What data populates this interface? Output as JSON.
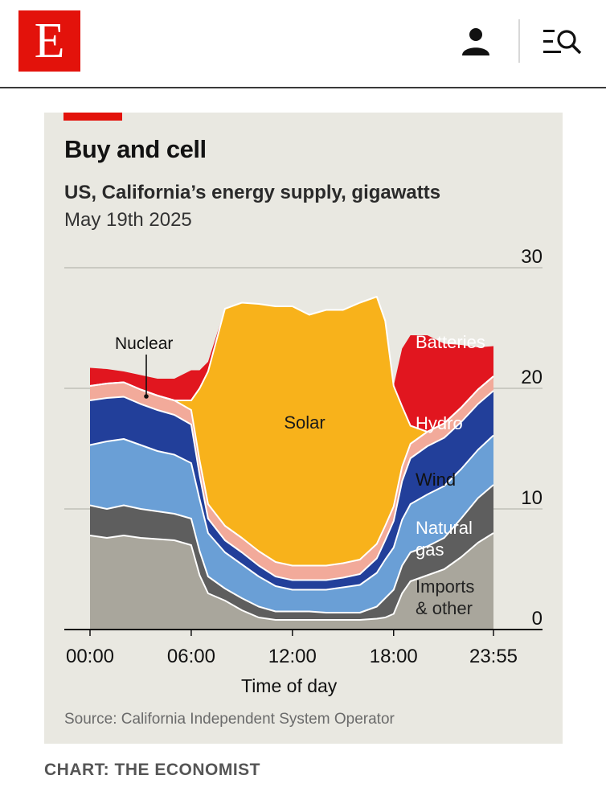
{
  "header": {
    "logo_letter": "E",
    "icons": [
      "user-icon",
      "search-menu-icon"
    ]
  },
  "colors": {
    "brand_red": "#e3120b",
    "card_bg": "#e9e8e1",
    "imports": "#a9a69c",
    "natural_gas": "#5e5e5e",
    "wind": "#6a9fd6",
    "hydro": "#223f9a",
    "nuclear": "#f2aa9a",
    "solar": "#f8b21b",
    "batteries": "#e1161f"
  },
  "chart_data": {
    "type": "area",
    "stacked": true,
    "title": "Buy and cell",
    "subtitle": "US, California’s energy supply, gigawatts",
    "date": "May 19th 2025",
    "xlabel": "Time of day",
    "ylabel": "",
    "x_hours": [
      0,
      1,
      2,
      3,
      4,
      5,
      6,
      6.5,
      7,
      8,
      9,
      10,
      11,
      12,
      13,
      14,
      15,
      16,
      17,
      17.5,
      18,
      18.5,
      19,
      20,
      21,
      22,
      23,
      23.92
    ],
    "x_ticks": [
      "00:00",
      "06:00",
      "12:00",
      "18:00",
      "23:55"
    ],
    "x_tick_hours": [
      0,
      6,
      12,
      18,
      23.92
    ],
    "ylim": [
      0,
      30
    ],
    "y_ticks": [
      "0",
      "10",
      "20",
      "30"
    ],
    "y_tick_values": [
      0,
      10,
      20,
      30
    ],
    "series": [
      {
        "name": "Imports & other",
        "label": "Imports\n& other",
        "values": [
          7.8,
          7.6,
          7.8,
          7.6,
          7.5,
          7.4,
          7.0,
          4.5,
          3.0,
          2.4,
          1.6,
          1.0,
          0.8,
          0.8,
          0.8,
          0.8,
          0.8,
          0.8,
          0.9,
          1.0,
          1.3,
          3.0,
          4.0,
          4.5,
          5.0,
          6.0,
          7.2,
          8.0
        ]
      },
      {
        "name": "Natural gas",
        "label": "Natural\ngas",
        "values": [
          2.5,
          2.4,
          2.5,
          2.4,
          2.3,
          2.2,
          2.2,
          2.0,
          1.4,
          1.0,
          1.0,
          0.9,
          0.7,
          0.7,
          0.7,
          0.6,
          0.6,
          0.6,
          1.0,
          1.6,
          2.0,
          2.3,
          2.4,
          2.4,
          2.6,
          3.2,
          3.7,
          4.0
        ]
      },
      {
        "name": "Wind",
        "label": "Wind",
        "values": [
          5.0,
          5.6,
          5.5,
          5.3,
          5.0,
          4.9,
          4.6,
          4.3,
          3.6,
          3.0,
          2.8,
          2.5,
          2.1,
          1.8,
          1.8,
          1.9,
          2.1,
          2.3,
          2.8,
          3.2,
          3.5,
          3.8,
          4.0,
          4.3,
          4.3,
          4.1,
          4.0,
          4.1
        ]
      },
      {
        "name": "Hydro",
        "label": "Hydro",
        "values": [
          3.7,
          3.6,
          3.5,
          3.4,
          3.4,
          3.3,
          3.2,
          2.0,
          1.2,
          1.0,
          1.0,
          0.9,
          0.8,
          0.8,
          0.8,
          0.8,
          0.8,
          0.9,
          1.2,
          1.6,
          2.2,
          3.2,
          3.8,
          4.0,
          4.0,
          3.9,
          3.8,
          3.7
        ]
      },
      {
        "name": "Nuclear",
        "label": "Nuclear",
        "values": [
          1.2,
          1.2,
          1.2,
          1.2,
          1.2,
          1.2,
          1.2,
          1.2,
          1.2,
          1.2,
          1.2,
          1.2,
          1.2,
          1.2,
          1.2,
          1.2,
          1.2,
          1.2,
          1.2,
          1.2,
          1.2,
          1.2,
          1.2,
          1.2,
          1.2,
          1.2,
          1.2,
          1.2
        ]
      },
      {
        "name": "Solar",
        "label": "Solar",
        "values": [
          0,
          0,
          0,
          0,
          0,
          0,
          0.8,
          6.0,
          11.0,
          18.0,
          19.5,
          20.5,
          21.2,
          21.5,
          20.8,
          21.2,
          21.0,
          21.3,
          20.5,
          17.0,
          10.0,
          5.0,
          1.5,
          0,
          0,
          0,
          0,
          0
        ]
      },
      {
        "name": "Batteries",
        "label": "Batteries",
        "values": [
          1.5,
          1.2,
          0.9,
          1.2,
          1.4,
          1.8,
          2.5,
          1.5,
          0.8,
          0,
          0,
          0,
          0,
          0,
          0,
          0,
          0,
          0,
          0,
          0,
          0,
          4.8,
          7.5,
          8.0,
          6.6,
          5.2,
          3.5,
          2.5
        ]
      }
    ],
    "annotations": [
      {
        "text": "Nuclear",
        "points_to": "Nuclear"
      }
    ]
  },
  "source": "Source: California Independent System Operator",
  "credit": "CHART: THE ECONOMIST"
}
